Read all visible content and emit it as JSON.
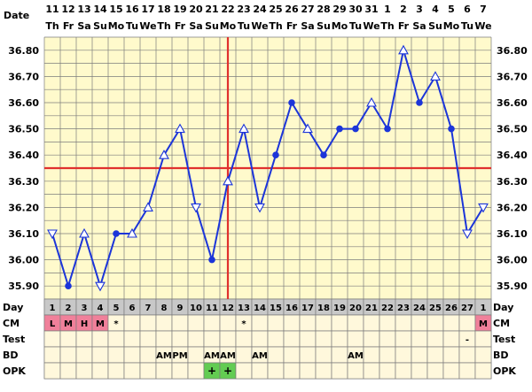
{
  "colors": {
    "plot_bg": "#fffacc",
    "grid": "#7c7c7c",
    "line": "#1c35d9",
    "coverline": "#e0312e",
    "ovulation": "#e0312e",
    "row_bg": "#fff8dc",
    "day_row_bg": "#c8c8c8",
    "cm_pink": "#f0809a",
    "opk_green": "#63cc52"
  },
  "chart_data": {
    "type": "line",
    "title": "",
    "header_labels": {
      "date": "Date",
      "dow": ""
    },
    "dates": [
      "11",
      "12",
      "13",
      "14",
      "15",
      "16",
      "17",
      "18",
      "19",
      "20",
      "21",
      "22",
      "23",
      "24",
      "25",
      "26",
      "27",
      "28",
      "29",
      "30",
      "31",
      "1",
      "2",
      "3",
      "4",
      "5",
      "6",
      "7"
    ],
    "weekdays": [
      "Th",
      "Fr",
      "Sa",
      "Su",
      "Mo",
      "Tu",
      "We",
      "Th",
      "Fr",
      "Sa",
      "Su",
      "Mo",
      "Tu",
      "We",
      "Th",
      "Fr",
      "Sa",
      "Su",
      "Mo",
      "Tu",
      "We",
      "Th",
      "Fr",
      "Sa",
      "Su",
      "Mo",
      "Tu",
      "We"
    ],
    "cycle_days": [
      "1",
      "2",
      "3",
      "4",
      "5",
      "6",
      "7",
      "8",
      "9",
      "10",
      "11",
      "12",
      "13",
      "14",
      "15",
      "16",
      "17",
      "18",
      "19",
      "20",
      "21",
      "22",
      "23",
      "24",
      "25",
      "26",
      "27",
      "1"
    ],
    "y_ticks": [
      "36.80",
      "36.70",
      "36.60",
      "36.50",
      "36.40",
      "36.30",
      "36.20",
      "36.10",
      "36.00",
      "35.90"
    ],
    "ylim": [
      35.85,
      36.85
    ],
    "temperatures": [
      36.1,
      35.9,
      36.1,
      35.9,
      36.1,
      36.1,
      36.2,
      36.4,
      36.5,
      36.2,
      36.0,
      36.3,
      36.5,
      36.2,
      36.4,
      36.6,
      36.5,
      36.4,
      36.5,
      36.5,
      36.6,
      36.5,
      36.8,
      36.6,
      36.7,
      36.5,
      36.1,
      36.2
    ],
    "markers": [
      "down",
      "filled",
      "up",
      "down",
      "filled",
      "up",
      "up",
      "up",
      "up",
      "down",
      "filled",
      "up",
      "up",
      "down",
      "filled",
      "filled",
      "up",
      "filled",
      "filled",
      "filled",
      "up",
      "filled",
      "up",
      "filled",
      "up",
      "filled",
      "down",
      "down"
    ],
    "coverline": 36.35,
    "ovulation_day_index": 11,
    "rows": [
      {
        "label": "Day",
        "cells": [
          "1",
          "2",
          "3",
          "4",
          "5",
          "6",
          "7",
          "8",
          "9",
          "10",
          "11",
          "12",
          "13",
          "14",
          "15",
          "16",
          "17",
          "18",
          "19",
          "20",
          "21",
          "22",
          "23",
          "24",
          "25",
          "26",
          "27",
          "1"
        ]
      },
      {
        "label": "CM",
        "cells": [
          "L",
          "M",
          "H",
          "M",
          "*",
          "",
          "",
          "",
          "",
          "",
          "",
          "",
          "*",
          "",
          "",
          "",
          "",
          "",
          "",
          "",
          "",
          "",
          "",
          "",
          "",
          "",
          "",
          "M"
        ],
        "highlight": [
          true,
          true,
          true,
          true,
          false,
          false,
          false,
          false,
          false,
          false,
          false,
          false,
          false,
          false,
          false,
          false,
          false,
          false,
          false,
          false,
          false,
          false,
          false,
          false,
          false,
          false,
          false,
          true
        ]
      },
      {
        "label": "Test",
        "cells": [
          "",
          "",
          "",
          "",
          "",
          "",
          "",
          "",
          "",
          "",
          "",
          "",
          "",
          "",
          "",
          "",
          "",
          "",
          "",
          "",
          "",
          "",
          "",
          "",
          "",
          "",
          "-",
          ""
        ]
      },
      {
        "label": "BD",
        "cells": [
          "",
          "",
          "",
          "",
          "",
          "",
          "",
          "AM",
          "PM",
          "",
          "AM",
          "AM",
          "",
          "AM",
          "",
          "",
          "",
          "",
          "",
          "AM",
          "",
          "",
          "",
          "",
          "",
          "",
          "",
          ""
        ]
      },
      {
        "label": "OPK",
        "cells": [
          "",
          "",
          "",
          "",
          "",
          "",
          "",
          "",
          "",
          "",
          "+",
          "+",
          "",
          "",
          "",
          "",
          "",
          "",
          "",
          "",
          "",
          "",
          "",
          "",
          "",
          "",
          "",
          ""
        ],
        "highlight": [
          false,
          false,
          false,
          false,
          false,
          false,
          false,
          false,
          false,
          false,
          true,
          true,
          false,
          false,
          false,
          false,
          false,
          false,
          false,
          false,
          false,
          false,
          false,
          false,
          false,
          false,
          false,
          false
        ]
      }
    ]
  }
}
